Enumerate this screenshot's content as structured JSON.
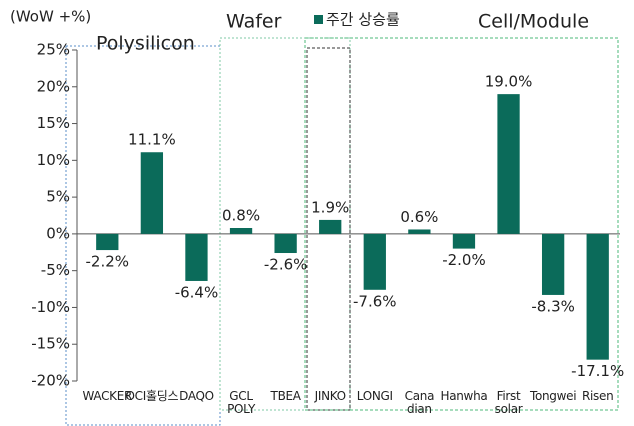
{
  "chart_data": {
    "type": "bar",
    "ylabel": "(WoW +%)",
    "groups": [
      "Polysilicon",
      "Wafer",
      "Cell/Module"
    ],
    "categories": [
      "WACKER",
      "OCI홀딩스",
      "DAQO",
      "GCL\nPOLY",
      "TBEA",
      "JINKO",
      "LONGI",
      "Cana\ndian",
      "Hanwha",
      "First\nsolar",
      "Tongwei",
      "Risen"
    ],
    "series": [
      {
        "name": "주간 상승률",
        "color": "#0b6b5a",
        "values": [
          -2.2,
          11.1,
          -6.4,
          0.8,
          -2.6,
          1.9,
          -7.6,
          0.6,
          -2.0,
          19.0,
          -8.3,
          -17.1
        ],
        "value_labels": [
          "-2.2%",
          "11.1%",
          "-6.4%",
          "0.8%",
          "-2.6%",
          "1.9%",
          "-7.6%",
          "0.6%",
          "-2.0%",
          "19.0%",
          "-8.3%",
          "-17.1%"
        ]
      }
    ],
    "ylim": [
      -20,
      25
    ],
    "yticks": [
      {
        "value": -20,
        "label": "-20%"
      },
      {
        "value": -15,
        "label": "-15%"
      },
      {
        "value": -10,
        "label": "-10%"
      },
      {
        "value": -5,
        "label": "-5%"
      },
      {
        "value": 0,
        "label": "0%"
      },
      {
        "value": 5,
        "label": "5%"
      },
      {
        "value": 10,
        "label": "10%"
      },
      {
        "value": 15,
        "label": "15%"
      },
      {
        "value": 20,
        "label": "20%"
      },
      {
        "value": 25,
        "label": "25%"
      }
    ],
    "grid": false
  }
}
